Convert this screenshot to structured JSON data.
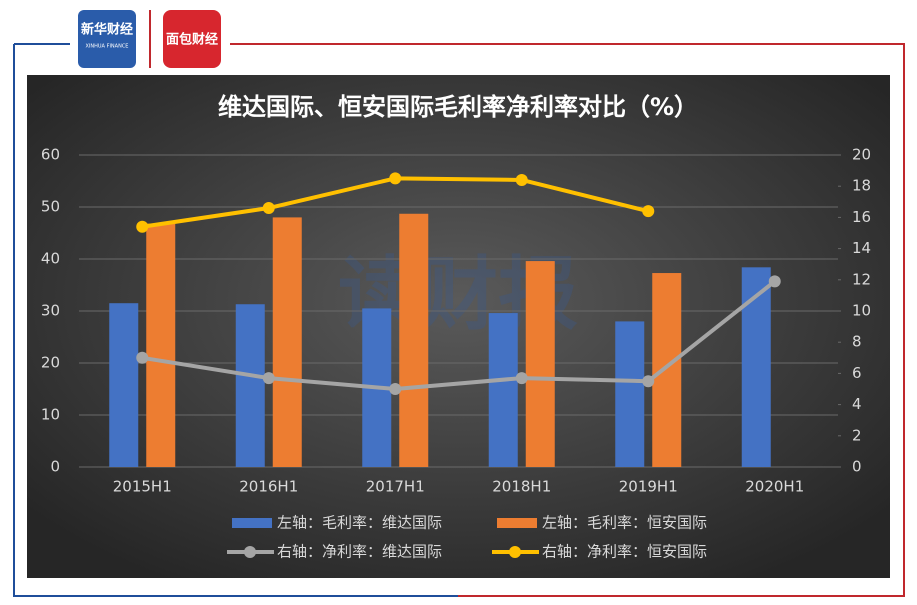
{
  "header": {
    "logo1": "新华财经",
    "logo1_sub": "XINHUA FINANCE",
    "logo2": "面包财经"
  },
  "watermark": "读财报",
  "chart_data": {
    "type": "bar-line",
    "title": "维达国际、恒安国际毛利率净利率对比（%）",
    "categories": [
      "2015H1",
      "2016H1",
      "2017H1",
      "2018H1",
      "2019H1",
      "2020H1"
    ],
    "series": [
      {
        "name": "左轴：毛利率：维达国际",
        "type": "bar",
        "axis": "y",
        "color": "#4472c4",
        "values": [
          31.5,
          31.3,
          30.5,
          29.6,
          28.0,
          38.4
        ]
      },
      {
        "name": "左轴：毛利率：恒安国际",
        "type": "bar",
        "axis": "y",
        "color": "#ed7d31",
        "values": [
          46.8,
          48.0,
          48.7,
          39.6,
          37.3,
          null
        ]
      },
      {
        "name": "右轴：净利率：维达国际",
        "type": "line",
        "axis": "y2",
        "color": "#a5a5a5",
        "values": [
          7.0,
          5.7,
          5.0,
          5.7,
          5.5,
          11.9
        ]
      },
      {
        "name": "右轴：净利率：恒安国际",
        "type": "line",
        "axis": "y2",
        "color": "#ffc000",
        "values": [
          15.4,
          16.6,
          18.5,
          18.4,
          16.4,
          null
        ]
      }
    ],
    "ylim": [
      0,
      60
    ],
    "yticks": [
      0,
      10,
      20,
      30,
      40,
      50,
      60
    ],
    "y2lim": [
      0,
      20
    ],
    "y2ticks": [
      0,
      2,
      4,
      6,
      8,
      10,
      12,
      14,
      16,
      18,
      20
    ],
    "grid": true
  }
}
